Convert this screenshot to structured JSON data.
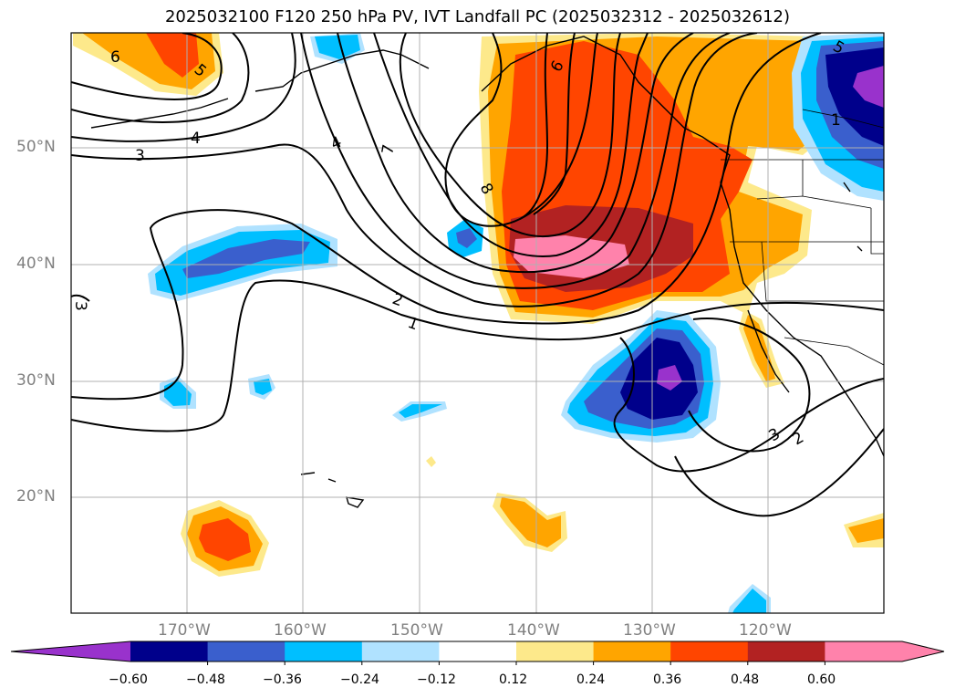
{
  "title": "2025032100 F120 250 hPa PV, IVT Landfall PC (2025032312 - 2025032612)",
  "lat_labels": [
    "50°N",
    "40°N",
    "30°N",
    "20°N"
  ],
  "lon_labels": [
    "170°W",
    "160°W",
    "150°W",
    "140°W",
    "130°W",
    "120°W"
  ],
  "colorbar": {
    "ticks": [
      "−0.60",
      "−0.48",
      "−0.36",
      "−0.24",
      "−0.12",
      "0.12",
      "0.24",
      "0.36",
      "0.48",
      "0.60"
    ],
    "colors": [
      "#9932cc",
      "#00008b",
      "#3a5fcd",
      "#00bfff",
      "#b0e2ff",
      "#ffffff",
      "#fde98b",
      "#ffa500",
      "#ff4500",
      "#b22222",
      "#ff82ab"
    ]
  },
  "contour_labels": [
    "6",
    "5",
    "4",
    "3",
    "4",
    "7",
    "8",
    "6",
    "2",
    "1",
    "3",
    "2",
    "3",
    "5",
    "1"
  ]
}
